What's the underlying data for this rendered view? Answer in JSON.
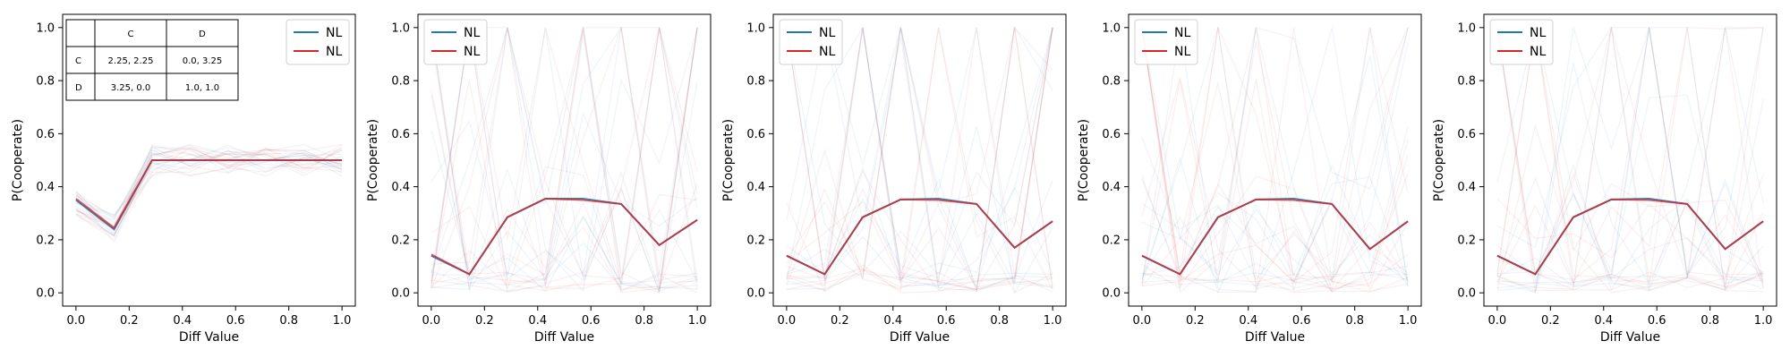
{
  "chart_data": [
    {
      "type": "line",
      "xlabel": "Diff Value",
      "ylabel": "P(Cooperate)",
      "xlim": [
        0.0,
        1.0
      ],
      "ylim": [
        0.0,
        1.0
      ],
      "xticks": [
        "0.0",
        "0.2",
        "0.4",
        "0.6",
        "0.8",
        "1.0"
      ],
      "yticks": [
        "0.0",
        "0.2",
        "0.4",
        "0.6",
        "0.8",
        "1.0"
      ],
      "legend": {
        "position": "top-right",
        "entries": [
          {
            "label": "NL",
            "color": "#1f77b4"
          },
          {
            "label": "NL",
            "color": "#d62728"
          }
        ]
      },
      "x": [
        0.0,
        0.143,
        0.286,
        0.429,
        0.571,
        0.714,
        0.857,
        1.0
      ],
      "series": [
        {
          "name": "NL",
          "color": "#1f77b4",
          "values": [
            0.35,
            0.24,
            0.5,
            0.5,
            0.5,
            0.5,
            0.5,
            0.5
          ]
        },
        {
          "name": "NL",
          "color": "#d62728",
          "values": [
            0.355,
            0.245,
            0.5,
            0.5,
            0.5,
            0.5,
            0.5,
            0.5
          ]
        }
      ],
      "payoff_table": {
        "headers": [
          "",
          "C",
          "D"
        ],
        "rows": [
          [
            "C",
            "2.25, 2.25",
            "0.0, 3.25"
          ],
          [
            "D",
            "3.25, 0.0",
            "1.0, 1.0"
          ]
        ]
      }
    },
    {
      "type": "line",
      "xlabel": "Diff Value",
      "ylabel": "P(Cooperate)",
      "xlim": [
        0.0,
        1.0
      ],
      "ylim": [
        0.0,
        1.0
      ],
      "xticks": [
        "0.0",
        "0.2",
        "0.4",
        "0.6",
        "0.8",
        "1.0"
      ],
      "yticks": [
        "0.0",
        "0.2",
        "0.4",
        "0.6",
        "0.8",
        "1.0"
      ],
      "legend": {
        "position": "top-left",
        "entries": [
          {
            "label": "NL",
            "color": "#1f77b4"
          },
          {
            "label": "NL",
            "color": "#d62728"
          }
        ]
      },
      "x": [
        0.0,
        0.143,
        0.286,
        0.429,
        0.571,
        0.714,
        0.857,
        1.0
      ],
      "series": [
        {
          "name": "NL",
          "color": "#1f77b4",
          "values": [
            0.14,
            0.07,
            0.285,
            0.355,
            0.355,
            0.335,
            0.18,
            0.275
          ]
        },
        {
          "name": "NL",
          "color": "#d62728",
          "values": [
            0.145,
            0.07,
            0.285,
            0.355,
            0.35,
            0.335,
            0.18,
            0.275
          ]
        }
      ]
    },
    {
      "type": "line",
      "xlabel": "Diff Value",
      "ylabel": "P(Cooperate)",
      "xlim": [
        0.0,
        1.0
      ],
      "ylim": [
        0.0,
        1.0
      ],
      "xticks": [
        "0.0",
        "0.2",
        "0.4",
        "0.6",
        "0.8",
        "1.0"
      ],
      "yticks": [
        "0.0",
        "0.2",
        "0.4",
        "0.6",
        "0.8",
        "1.0"
      ],
      "legend": {
        "position": "top-left",
        "entries": [
          {
            "label": "NL",
            "color": "#1f77b4"
          },
          {
            "label": "NL",
            "color": "#d62728"
          }
        ]
      },
      "x": [
        0.0,
        0.143,
        0.286,
        0.429,
        0.571,
        0.714,
        0.857,
        1.0
      ],
      "series": [
        {
          "name": "NL",
          "color": "#1f77b4",
          "values": [
            0.14,
            0.07,
            0.285,
            0.352,
            0.355,
            0.335,
            0.17,
            0.27
          ]
        },
        {
          "name": "NL",
          "color": "#d62728",
          "values": [
            0.14,
            0.07,
            0.285,
            0.352,
            0.35,
            0.335,
            0.17,
            0.27
          ]
        }
      ]
    },
    {
      "type": "line",
      "xlabel": "Diff Value",
      "ylabel": "P(Cooperate)",
      "xlim": [
        0.0,
        1.0
      ],
      "ylim": [
        0.0,
        1.0
      ],
      "xticks": [
        "0.0",
        "0.2",
        "0.4",
        "0.6",
        "0.8",
        "1.0"
      ],
      "yticks": [
        "0.0",
        "0.2",
        "0.4",
        "0.6",
        "0.8",
        "1.0"
      ],
      "legend": {
        "position": "top-left",
        "entries": [
          {
            "label": "NL",
            "color": "#1f77b4"
          },
          {
            "label": "NL",
            "color": "#d62728"
          }
        ]
      },
      "x": [
        0.0,
        0.143,
        0.286,
        0.429,
        0.571,
        0.714,
        0.857,
        1.0
      ],
      "series": [
        {
          "name": "NL",
          "color": "#1f77b4",
          "values": [
            0.14,
            0.07,
            0.285,
            0.352,
            0.355,
            0.335,
            0.165,
            0.27
          ]
        },
        {
          "name": "NL",
          "color": "#d62728",
          "values": [
            0.14,
            0.07,
            0.285,
            0.352,
            0.35,
            0.335,
            0.165,
            0.27
          ]
        }
      ]
    },
    {
      "type": "line",
      "xlabel": "Diff Value",
      "ylabel": "P(Cooperate)",
      "xlim": [
        0.0,
        1.0
      ],
      "ylim": [
        0.0,
        1.0
      ],
      "xticks": [
        "0.0",
        "0.2",
        "0.4",
        "0.6",
        "0.8",
        "1.0"
      ],
      "yticks": [
        "0.0",
        "0.2",
        "0.4",
        "0.6",
        "0.8",
        "1.0"
      ],
      "legend": {
        "position": "top-left",
        "entries": [
          {
            "label": "NL",
            "color": "#1f77b4"
          },
          {
            "label": "NL",
            "color": "#d62728"
          }
        ]
      },
      "x": [
        0.0,
        0.143,
        0.286,
        0.429,
        0.571,
        0.714,
        0.857,
        1.0
      ],
      "series": [
        {
          "name": "NL",
          "color": "#1f77b4",
          "values": [
            0.14,
            0.07,
            0.285,
            0.352,
            0.355,
            0.335,
            0.165,
            0.27
          ]
        },
        {
          "name": "NL",
          "color": "#d62728",
          "values": [
            0.14,
            0.07,
            0.285,
            0.352,
            0.35,
            0.335,
            0.165,
            0.27
          ]
        }
      ]
    }
  ]
}
